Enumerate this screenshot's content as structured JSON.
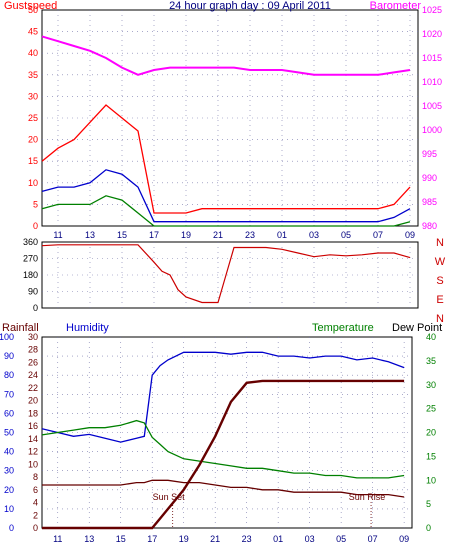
{
  "chart_data": [
    {
      "type": "line",
      "title": "24 hour graph day : 09 April 2011",
      "labels": {
        "left": "Gustspeed",
        "right": "Barometer"
      },
      "colors": {
        "gust": "#ff0000",
        "wind": "#0000cc",
        "low": "#008000",
        "barometer": "#ff00ff",
        "title": "#000080",
        "left_axis": "#ff0000",
        "right_axis": "#ff00ff"
      },
      "x_tick_labels": [
        "11",
        "13",
        "15",
        "17",
        "19",
        "21",
        "23",
        "01",
        "03",
        "05",
        "07",
        "09"
      ],
      "x_hours": [
        10,
        11,
        12,
        13,
        14,
        15,
        16,
        17,
        18,
        19,
        20,
        21,
        22,
        23,
        24,
        25,
        26,
        27,
        28,
        29,
        30,
        31,
        32,
        33
      ],
      "ylim_left": [
        0,
        50
      ],
      "ylim_right": [
        980,
        1025
      ],
      "y_ticks_left": [
        "0",
        "5",
        "10",
        "15",
        "20",
        "25",
        "30",
        "35",
        "40",
        "45",
        "50"
      ],
      "y_ticks_right": [
        "980",
        "985",
        "990",
        "995",
        "1000",
        "1005",
        "1010",
        "1015",
        "1020",
        "1025"
      ],
      "series": [
        {
          "name": "Gustspeed",
          "values": [
            15,
            18,
            20,
            24,
            28,
            25,
            22,
            3,
            3,
            3,
            4,
            4,
            4,
            4,
            4,
            4,
            4,
            4,
            4,
            4,
            4,
            4,
            5,
            9
          ]
        },
        {
          "values": [
            8,
            9,
            9,
            10,
            13,
            12,
            9,
            1,
            1,
            1,
            1,
            1,
            1,
            1,
            1,
            1,
            1,
            1,
            1,
            1,
            1,
            1,
            2,
            4
          ]
        },
        {
          "values": [
            4,
            5,
            5,
            5,
            7,
            6,
            3,
            0,
            0,
            0,
            0,
            0,
            0,
            0,
            0,
            0,
            0,
            0,
            0,
            0,
            0,
            0,
            0,
            1
          ]
        },
        {
          "name": "Barometer",
          "values": [
            1019.5,
            1018.5,
            1017.5,
            1016.5,
            1015,
            1013,
            1011.5,
            1012.5,
            1013,
            1013,
            1013,
            1013,
            1013,
            1012.5,
            1012.5,
            1012.5,
            1012,
            1011.5,
            1011.5,
            1011.5,
            1011.5,
            1011.5,
            1012,
            1012.5
          ]
        }
      ]
    },
    {
      "type": "line",
      "right_labels": [
        "N",
        "W",
        "S",
        "E",
        "N"
      ],
      "colors": {
        "direction": "#cc0000"
      },
      "x_tick_labels": [
        "11",
        "13",
        "15",
        "17",
        "19",
        "21",
        "23",
        "01",
        "03",
        "05",
        "07",
        "09"
      ],
      "ylim": [
        0,
        360
      ],
      "y_ticks": [
        "0",
        "90",
        "180",
        "270",
        "360"
      ],
      "x_hours": [
        10,
        11,
        12,
        13,
        14,
        15,
        16,
        17,
        17.5,
        18,
        18.5,
        19,
        20,
        21,
        21.5,
        22,
        23,
        24,
        25,
        26,
        27,
        28,
        29,
        30,
        31,
        32,
        33
      ],
      "series": [
        {
          "values": [
            340,
            345,
            345,
            345,
            345,
            345,
            345,
            250,
            200,
            180,
            100,
            60,
            30,
            30,
            180,
            330,
            330,
            330,
            320,
            300,
            280,
            290,
            285,
            290,
            300,
            300,
            275
          ]
        }
      ]
    },
    {
      "type": "line",
      "labels": {
        "rainfall": "Rainfall",
        "humidity": "Humidity",
        "temperature": "Temperature",
        "dew_point": "Dew Point",
        "sun_set": "Sun Set",
        "sun_rise": "Sun Rise"
      },
      "colors": {
        "rainfall": "#660000",
        "humidity": "#0000cc",
        "temperature": "#008000",
        "dew_point": "#660000"
      },
      "x_tick_labels": [
        "11",
        "13",
        "15",
        "17",
        "19",
        "21",
        "23",
        "01",
        "03",
        "05",
        "07",
        "09"
      ],
      "x_hours": [
        10,
        11,
        12,
        13,
        14,
        15,
        16,
        16.5,
        17,
        17.5,
        18,
        19,
        20,
        21,
        22,
        23,
        24,
        25,
        26,
        27,
        28,
        29,
        30,
        31,
        32,
        33
      ],
      "ylim_rainfall": [
        0,
        100
      ],
      "y_ticks_rainfall": [
        "0",
        "10",
        "20",
        "30",
        "40",
        "50",
        "60",
        "70",
        "80",
        "90",
        "100"
      ],
      "ylim_mid": [
        0,
        30
      ],
      "y_ticks_mid": [
        "0",
        "2",
        "4",
        "6",
        "8",
        "10",
        "12",
        "14",
        "16",
        "18",
        "20",
        "22",
        "24",
        "26",
        "28",
        "30"
      ],
      "ylim_temp": [
        0,
        40
      ],
      "y_ticks_temp": [
        "0",
        "5",
        "10",
        "15",
        "20",
        "25",
        "30",
        "35",
        "40"
      ],
      "events": [
        {
          "label": "Sun Set",
          "x_hour": 18.3
        },
        {
          "label": "Sun Rise",
          "x_hour": 30.9
        }
      ],
      "series": [
        {
          "name": "Humidity",
          "values": [
            52,
            50,
            48,
            49,
            47,
            45,
            47,
            48,
            80,
            85,
            88,
            92,
            92,
            92,
            91,
            92,
            92,
            90,
            90,
            89,
            90,
            90,
            88,
            89,
            87,
            84
          ]
        },
        {
          "name": "Temperature",
          "values": [
            19.5,
            20,
            20.5,
            21,
            21,
            21.5,
            22.5,
            22,
            19,
            17.5,
            16,
            14.5,
            14,
            13.5,
            13,
            12.5,
            12.5,
            12,
            11.5,
            11.5,
            11,
            11,
            10.5,
            10.5,
            10.5,
            11
          ]
        },
        {
          "name": "Dew Point",
          "values": [
            9,
            9,
            9,
            9,
            9,
            9,
            9.5,
            9.5,
            10,
            10,
            10,
            9.5,
            9.5,
            9,
            8.5,
            8.5,
            8,
            8,
            7.5,
            7.5,
            7.5,
            7.5,
            7,
            7,
            7,
            6.5
          ]
        },
        {
          "name": "Rainfall",
          "values": [
            0,
            0,
            0,
            0,
            0,
            0,
            0,
            0,
            0,
            5,
            10,
            20,
            33,
            48,
            66,
            76,
            77,
            77,
            77,
            77,
            77,
            77,
            77,
            77,
            77,
            77
          ]
        }
      ]
    }
  ]
}
